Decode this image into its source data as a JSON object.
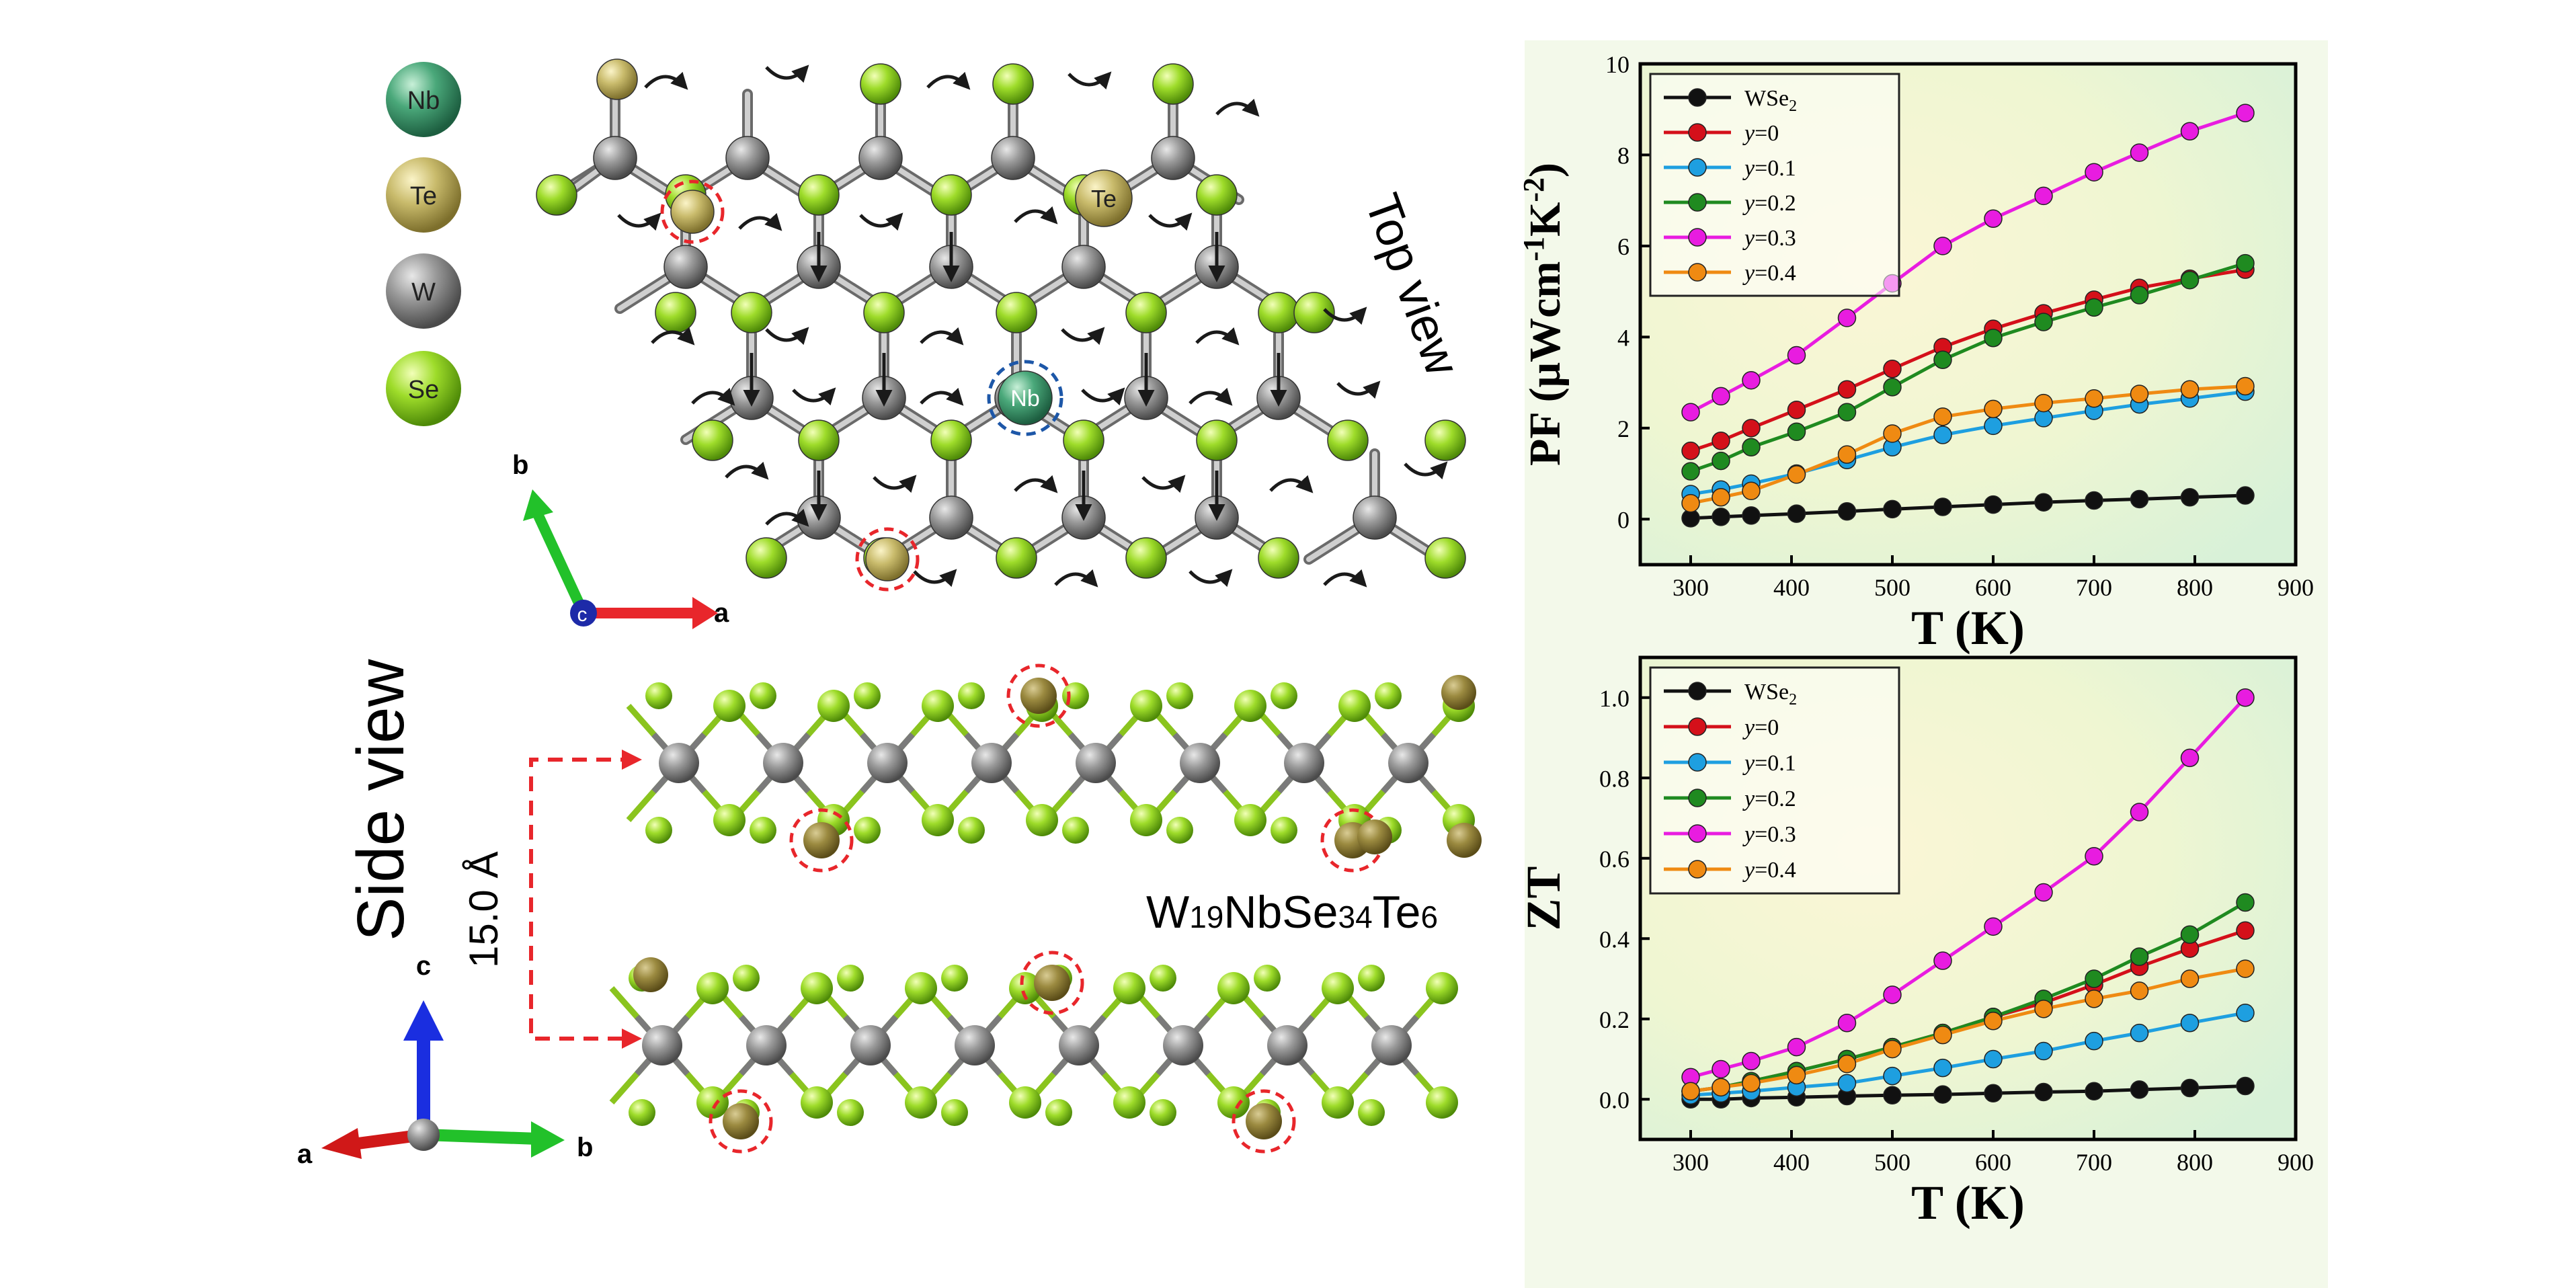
{
  "legend_atoms": [
    {
      "symbol": "Nb",
      "color": "#3b9a6e"
    },
    {
      "symbol": "Te",
      "color": "#b8ab5e"
    },
    {
      "symbol": "W",
      "color": "#7d7d7d"
    },
    {
      "symbol": "Se",
      "color": "#8fd21e"
    }
  ],
  "structure": {
    "top_view_label": "Top view",
    "side_view_label": "Side view",
    "spacing_label": "15.0 Å",
    "formula": {
      "w": "W",
      "w_sub": "19",
      "nb": "Nb",
      "se": "Se",
      "se_sub": "34",
      "te": "Te",
      "te_sub": "6"
    },
    "top_nb_label": "Nb",
    "top_te_label": "Te",
    "axes_top": {
      "b": "b",
      "c": "c",
      "a": "a"
    },
    "axes_side": {
      "c": "c",
      "a": "a",
      "b": "b"
    }
  },
  "colors": {
    "WSe2": "#111111",
    "y0": "#d4101a",
    "y01": "#1e9fe0",
    "y02": "#1f8a20",
    "y03": "#e81ce0",
    "y04": "#ef8a12",
    "red_dash": "#e8262b",
    "blue_dash": "#1d57a8",
    "w_atom": "#7d7d7d",
    "se_atom": "#8fd21e",
    "te_atom": "#b8ab5e",
    "nb_atom": "#3b9a6e"
  },
  "chart_data": [
    {
      "type": "line",
      "ylabel_parts": {
        "main": "PF (μWcm",
        "sup1": "-1",
        "mid": "K",
        "sup2": "-2",
        "end": ")"
      },
      "xlabel": "T (K)",
      "xlim": [
        250,
        900
      ],
      "ylim": [
        -1,
        10
      ],
      "xticks": [
        300,
        400,
        500,
        600,
        700,
        800,
        900
      ],
      "yticks": [
        0,
        2,
        4,
        6,
        8,
        10
      ],
      "legend_position": "top-left",
      "x": [
        300,
        330,
        360,
        405,
        455,
        500,
        550,
        600,
        650,
        700,
        745,
        795,
        850
      ],
      "series": [
        {
          "name": "WSe2",
          "name_main": "WSe",
          "name_sub": "2",
          "color_key": "WSe2",
          "values": [
            0.02,
            0.05,
            0.08,
            0.12,
            0.17,
            0.22,
            0.27,
            0.32,
            0.37,
            0.41,
            0.44,
            0.48,
            0.52
          ]
        },
        {
          "name": "y=0",
          "name_var": "y",
          "name_val": "=0",
          "color_key": "y0",
          "values": [
            1.5,
            1.72,
            2.0,
            2.4,
            2.85,
            3.3,
            3.78,
            4.18,
            4.52,
            4.82,
            5.08,
            5.28,
            5.48
          ]
        },
        {
          "name": "y=0.1",
          "name_var": "y",
          "name_val": "=0.1",
          "color_key": "y01",
          "values": [
            0.55,
            0.65,
            0.78,
            1.0,
            1.3,
            1.58,
            1.85,
            2.05,
            2.22,
            2.38,
            2.52,
            2.65,
            2.8
          ]
        },
        {
          "name": "y=0.2",
          "name_var": "y",
          "name_val": "=0.2",
          "color_key": "y02",
          "values": [
            1.05,
            1.28,
            1.58,
            1.92,
            2.35,
            2.9,
            3.5,
            3.98,
            4.33,
            4.65,
            4.92,
            5.25,
            5.62
          ]
        },
        {
          "name": "y=0.3",
          "name_var": "y",
          "name_val": "=0.3",
          "color_key": "y03",
          "values": [
            2.35,
            2.7,
            3.05,
            3.6,
            4.42,
            5.18,
            6.0,
            6.6,
            7.1,
            7.62,
            8.05,
            8.52,
            8.92
          ]
        },
        {
          "name": "y=0.4",
          "name_var": "y",
          "name_val": "=0.4",
          "color_key": "y04",
          "values": [
            0.35,
            0.48,
            0.62,
            0.98,
            1.42,
            1.88,
            2.25,
            2.42,
            2.55,
            2.65,
            2.75,
            2.85,
            2.92
          ]
        }
      ]
    },
    {
      "type": "line",
      "ylabel": "ZT",
      "xlabel": "T (K)",
      "xlim": [
        250,
        900
      ],
      "ylim": [
        -0.1,
        1.1
      ],
      "xticks": [
        300,
        400,
        500,
        600,
        700,
        800,
        900
      ],
      "yticks": [
        0.0,
        0.2,
        0.4,
        0.6,
        0.8,
        1.0
      ],
      "ytick_labels": [
        "0.0",
        "0.2",
        "0.4",
        "0.6",
        "0.8",
        "1.0"
      ],
      "legend_position": "top-left",
      "x": [
        300,
        330,
        360,
        405,
        455,
        500,
        550,
        600,
        650,
        700,
        745,
        795,
        850
      ],
      "series": [
        {
          "name": "WSe2",
          "name_main": "WSe",
          "name_sub": "2",
          "color_key": "WSe2",
          "values": [
            0.0,
            0.0,
            0.003,
            0.005,
            0.008,
            0.01,
            0.012,
            0.015,
            0.018,
            0.02,
            0.024,
            0.028,
            0.033
          ]
        },
        {
          "name": "y=0",
          "name_var": "y",
          "name_val": "=0",
          "color_key": "y0",
          "values": [
            0.02,
            0.03,
            0.045,
            0.07,
            0.1,
            0.13,
            0.165,
            0.205,
            0.24,
            0.285,
            0.33,
            0.375,
            0.42
          ]
        },
        {
          "name": "y=0.1",
          "name_var": "y",
          "name_val": "=0.1",
          "color_key": "y01",
          "values": [
            0.01,
            0.015,
            0.02,
            0.03,
            0.04,
            0.058,
            0.078,
            0.1,
            0.12,
            0.145,
            0.165,
            0.19,
            0.215
          ]
        },
        {
          "name": "y=0.2",
          "name_var": "y",
          "name_val": "=0.2",
          "color_key": "y02",
          "values": [
            0.02,
            0.03,
            0.045,
            0.07,
            0.1,
            0.13,
            0.165,
            0.205,
            0.25,
            0.3,
            0.355,
            0.41,
            0.49
          ]
        },
        {
          "name": "y=0.3",
          "name_var": "y",
          "name_val": "=0.3",
          "color_key": "y03",
          "values": [
            0.055,
            0.075,
            0.095,
            0.13,
            0.19,
            0.26,
            0.345,
            0.43,
            0.515,
            0.605,
            0.715,
            0.85,
            1.0
          ]
        },
        {
          "name": "y=0.4",
          "name_var": "y",
          "name_val": "=0.4",
          "color_key": "y04",
          "values": [
            0.02,
            0.03,
            0.04,
            0.06,
            0.088,
            0.125,
            0.16,
            0.195,
            0.225,
            0.25,
            0.27,
            0.3,
            0.325
          ]
        }
      ]
    }
  ]
}
